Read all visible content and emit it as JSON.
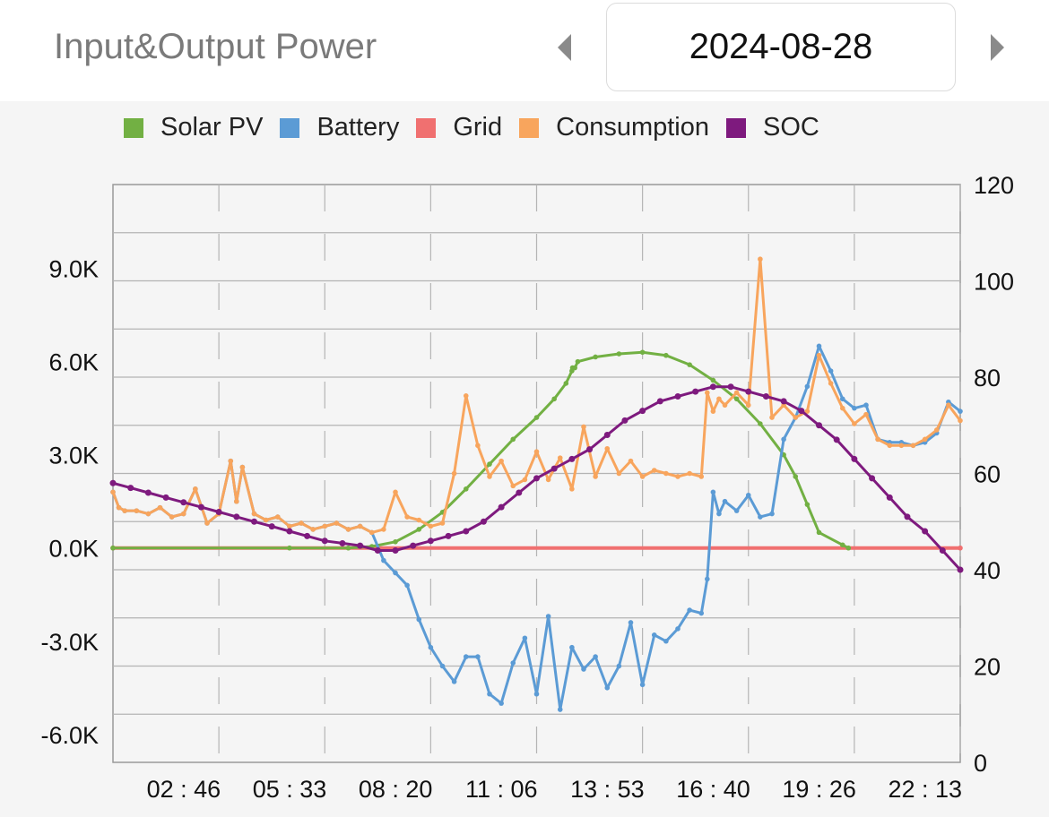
{
  "header": {
    "title": "Input&Output Power",
    "date": "2024-08-28"
  },
  "icons": {
    "prev": "chevron-left-icon",
    "next": "chevron-right-icon"
  },
  "colors": {
    "solar": "#72b043",
    "battery": "#5b9bd5",
    "grid": "#f07070",
    "consumption": "#f8a55d",
    "soc": "#7e1a7e"
  },
  "chart_data": {
    "type": "line",
    "title": "",
    "legend": [
      "Solar PV",
      "Battery",
      "Grid",
      "Consumption",
      "SOC"
    ],
    "legend_position": "top",
    "grid": true,
    "x_tick_labels": [
      "02 : 46",
      "05 : 33",
      "08 : 20",
      "11 : 06",
      "13 : 53",
      "16 : 40",
      "19 : 26",
      "22 : 13"
    ],
    "x_range_minutes": [
      0,
      1440
    ],
    "y_left_tick_labels": [
      "9.0K",
      "6.0K",
      "3.0K",
      "0.0K",
      "-3.0K",
      "-6.0K"
    ],
    "y_left_range": [
      -6900,
      11700
    ],
    "y_right_tick_labels": [
      "120",
      "100",
      "80",
      "60",
      "40",
      "20",
      "0"
    ],
    "y_right_range": [
      0,
      120
    ],
    "series": [
      {
        "name": "Solar PV",
        "axis": "left",
        "x": [
          0,
          300,
          400,
          440,
          480,
          520,
          560,
          600,
          640,
          680,
          720,
          750,
          770,
          780,
          781,
          785,
          790,
          820,
          860,
          900,
          940,
          980,
          1020,
          1060,
          1100,
          1140,
          1160,
          1180,
          1200,
          1240,
          1250
        ],
        "y": [
          0,
          0,
          0,
          50,
          200,
          600,
          1150,
          1900,
          2700,
          3500,
          4200,
          4800,
          5300,
          5700,
          5800,
          5800,
          6000,
          6150,
          6250,
          6300,
          6200,
          5900,
          5400,
          4800,
          4000,
          3000,
          2300,
          1400,
          500,
          100,
          0
        ]
      },
      {
        "name": "Battery",
        "axis": "left",
        "x": [
          0,
          10,
          20,
          40,
          60,
          80,
          100,
          120,
          140,
          160,
          180,
          200,
          210,
          220,
          240,
          260,
          280,
          300,
          320,
          340,
          360,
          380,
          400,
          420,
          440,
          460,
          480,
          500,
          520,
          540,
          560,
          580,
          600,
          620,
          640,
          660,
          680,
          700,
          720,
          740,
          760,
          780,
          800,
          820,
          840,
          860,
          880,
          900,
          920,
          940,
          960,
          980,
          1000,
          1010,
          1020,
          1030,
          1040,
          1060,
          1080,
          1100,
          1120,
          1140,
          1160,
          1180,
          1200,
          1220,
          1240,
          1260,
          1280,
          1300,
          1320,
          1340,
          1360,
          1380,
          1400,
          1420,
          1440
        ],
        "y": [
          1800,
          1300,
          1200,
          1200,
          1100,
          1300,
          1000,
          1100,
          1900,
          800,
          1100,
          2800,
          1500,
          2600,
          1100,
          900,
          1000,
          700,
          800,
          600,
          700,
          800,
          600,
          700,
          500,
          -400,
          -800,
          -1200,
          -2300,
          -3200,
          -3800,
          -4300,
          -3500,
          -3500,
          -4700,
          -5000,
          -3700,
          -2900,
          -4700,
          -2200,
          -5200,
          -3200,
          -3900,
          -3500,
          -4500,
          -3800,
          -2400,
          -4400,
          -2800,
          -3000,
          -2600,
          -2000,
          -2100,
          -1000,
          1800,
          1100,
          1500,
          1200,
          1700,
          1000,
          1100,
          3500,
          4200,
          5200,
          6500,
          5700,
          4800,
          4500,
          4600,
          3500,
          3400,
          3400,
          3300,
          3400,
          3700,
          4700,
          4400
        ]
      },
      {
        "name": "Grid",
        "axis": "left",
        "x": [
          0,
          1440
        ],
        "y": [
          0,
          0
        ]
      },
      {
        "name": "Consumption",
        "axis": "left",
        "x": [
          0,
          10,
          20,
          40,
          60,
          80,
          100,
          120,
          140,
          160,
          180,
          200,
          210,
          220,
          240,
          260,
          280,
          300,
          320,
          340,
          360,
          380,
          400,
          420,
          440,
          460,
          480,
          500,
          520,
          540,
          560,
          580,
          600,
          620,
          640,
          660,
          680,
          700,
          720,
          740,
          760,
          780,
          800,
          820,
          840,
          860,
          880,
          900,
          920,
          940,
          960,
          980,
          1000,
          1010,
          1020,
          1030,
          1040,
          1060,
          1080,
          1100,
          1120,
          1140,
          1160,
          1180,
          1200,
          1220,
          1240,
          1260,
          1280,
          1300,
          1320,
          1340,
          1360,
          1380,
          1400,
          1420,
          1440
        ],
        "y": [
          1800,
          1300,
          1200,
          1200,
          1100,
          1300,
          1000,
          1100,
          1900,
          800,
          1100,
          2800,
          1500,
          2600,
          1100,
          900,
          1000,
          700,
          800,
          600,
          700,
          800,
          600,
          700,
          500,
          600,
          1800,
          1000,
          900,
          700,
          800,
          2400,
          4900,
          3300,
          2300,
          2800,
          2000,
          2200,
          3100,
          2200,
          2900,
          1900,
          3900,
          2300,
          3200,
          2400,
          2800,
          2300,
          2500,
          2400,
          2300,
          2400,
          2300,
          5000,
          4400,
          4800,
          4600,
          5000,
          4600,
          9300,
          4200,
          4600,
          4200,
          4400,
          6200,
          5300,
          4500,
          4000,
          4300,
          3500,
          3300,
          3300,
          3300,
          3500,
          3800,
          4600,
          4100
        ]
      },
      {
        "name": "SOC",
        "axis": "right",
        "x": [
          0,
          30,
          60,
          90,
          120,
          150,
          180,
          210,
          240,
          270,
          300,
          330,
          360,
          390,
          420,
          450,
          480,
          510,
          540,
          570,
          600,
          630,
          660,
          690,
          720,
          750,
          780,
          810,
          840,
          870,
          900,
          930,
          960,
          990,
          1020,
          1050,
          1080,
          1110,
          1140,
          1170,
          1200,
          1230,
          1260,
          1290,
          1320,
          1350,
          1380,
          1410,
          1440
        ],
        "y": [
          58,
          57,
          56,
          55,
          54,
          53,
          52,
          51,
          50,
          49,
          48,
          47,
          46,
          45.5,
          45,
          44,
          44,
          45,
          46,
          47,
          48,
          50,
          53,
          56,
          59,
          61,
          63,
          65,
          68,
          71,
          73,
          75,
          76,
          77,
          78,
          78,
          77,
          76,
          75,
          73,
          70,
          67,
          63,
          59,
          55,
          51,
          48,
          44,
          40
        ]
      }
    ]
  }
}
